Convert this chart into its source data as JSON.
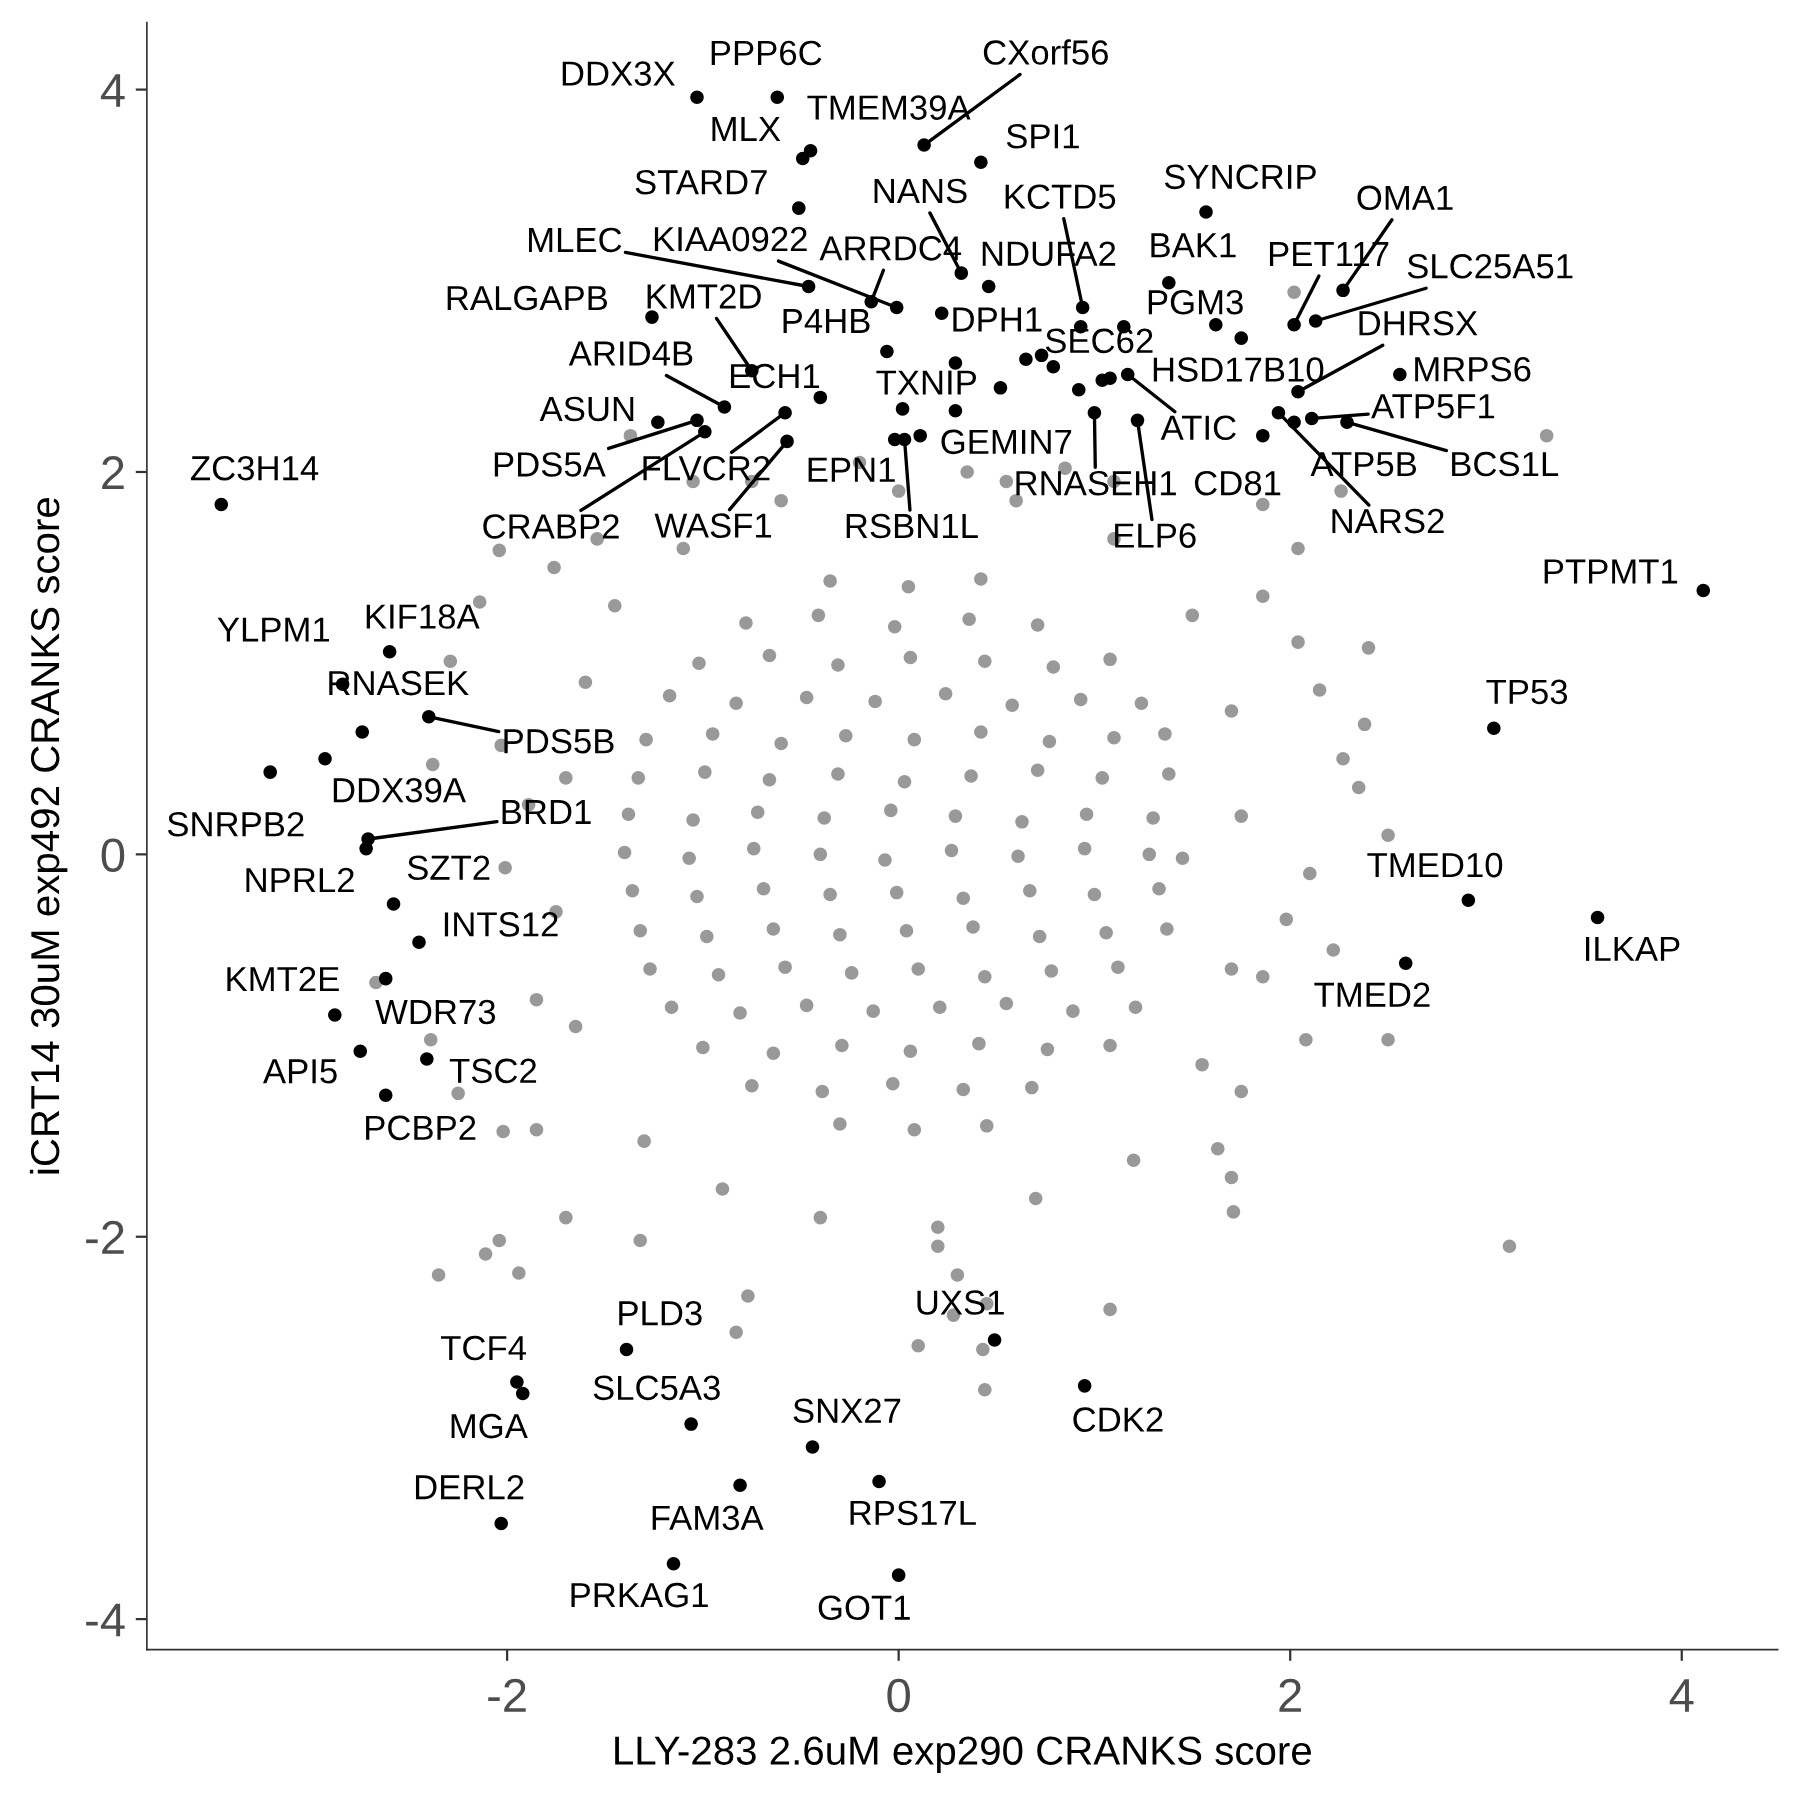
{
  "chart_data": {
    "type": "scatter",
    "xlabel": "LLY-283 2.6uM exp290 CRANKS score",
    "ylabel": "iCRT14 30uM exp492 CRANKS score",
    "xlim": [
      -3.84,
      4.49
    ],
    "ylim": [
      -4.16,
      4.35
    ],
    "xticks": [
      -2,
      0,
      2,
      4
    ],
    "yticks": [
      -4,
      -2,
      0,
      2,
      4
    ],
    "marker": "circle",
    "series": [
      {
        "color": "#999999",
        "x": [
          -1.37,
          -2.04,
          -1.76,
          -1.54,
          -2.14,
          2.02,
          3.31,
          2.26,
          1.86,
          2.04,
          2.4,
          2.38,
          2.5,
          2.35,
          2.22,
          2.5,
          2.08,
          3.12,
          1.7,
          1.71,
          1.08,
          0.44,
          0.43,
          0.1,
          0.28,
          -0.83,
          -0.77,
          -1.32,
          -1.7,
          -1.94,
          -2.35,
          -2.04,
          -2.11,
          -2.02,
          -1.85,
          -2.03,
          -2.38,
          -2.29,
          -2.67,
          -2.39,
          -1.85,
          -2.01,
          -1.89,
          1.86,
          2.04,
          2.15,
          2.27,
          2.1,
          1.98,
          1.86,
          1.75,
          1.63,
          -1.6,
          -1.7,
          -1.75,
          -1.65,
          -1.3,
          -0.9,
          -0.4,
          0.2,
          0.7,
          1.2,
          1.55,
          1.7,
          1.75,
          1.7,
          1.5,
          1.1,
          0.6,
          0.0,
          -0.6,
          -1.1,
          -1.45,
          0.35,
          0.55,
          0.85,
          1.1,
          -0.2,
          -0.75,
          -1.05,
          0.3,
          0.45,
          0.2,
          -2.25,
          -0.35,
          0.05,
          0.42,
          -0.78,
          -0.41,
          -0.02,
          0.36,
          0.71,
          -1.02,
          -0.66,
          -0.31,
          0.06,
          0.44,
          0.79,
          1.08,
          -1.17,
          -0.83,
          -0.47,
          -0.12,
          0.24,
          0.58,
          0.93,
          1.24,
          -1.29,
          -0.95,
          -0.6,
          -0.27,
          0.08,
          0.42,
          0.77,
          1.1,
          1.36,
          -1.33,
          -0.99,
          -0.66,
          -0.31,
          0.03,
          0.37,
          0.71,
          1.04,
          1.38,
          -1.38,
          -1.05,
          -0.72,
          -0.38,
          -0.04,
          0.29,
          0.63,
          0.96,
          1.3,
          -1.4,
          -1.07,
          -0.74,
          -0.4,
          -0.07,
          0.27,
          0.61,
          0.95,
          1.28,
          1.45,
          -1.36,
          -1.03,
          -0.69,
          -0.35,
          -0.01,
          0.33,
          0.67,
          1.0,
          1.33,
          -1.32,
          -0.98,
          -0.64,
          -0.3,
          0.04,
          0.38,
          0.72,
          1.06,
          1.37,
          -1.27,
          -0.92,
          -0.58,
          -0.24,
          0.1,
          0.44,
          0.78,
          1.12,
          -1.16,
          -0.81,
          -0.47,
          -0.13,
          0.21,
          0.55,
          0.89,
          1.21,
          -1.0,
          -0.64,
          -0.29,
          0.06,
          0.41,
          0.76,
          1.08,
          -0.75,
          -0.39,
          -0.03,
          0.33,
          0.68,
          -0.3,
          0.08,
          0.45
        ],
        "values": [
          2.19,
          1.59,
          1.5,
          1.65,
          1.32,
          2.94,
          2.19,
          1.9,
          1.83,
          1.6,
          1.08,
          0.68,
          0.1,
          0.35,
          -0.5,
          -0.97,
          -0.97,
          -2.05,
          -1.69,
          -1.87,
          -2.38,
          -2.8,
          -2.59,
          -2.57,
          -2.41,
          -2.5,
          -2.31,
          -2.02,
          -1.9,
          -2.19,
          -2.2,
          -2.02,
          -2.09,
          -1.45,
          -1.44,
          0.57,
          0.47,
          1.01,
          -0.67,
          -0.97,
          -0.76,
          -0.07,
          0.26,
          1.35,
          1.11,
          0.86,
          0.5,
          -0.1,
          -0.34,
          -0.64,
          -1.24,
          -1.54,
          0.9,
          0.4,
          -0.3,
          -0.9,
          -1.5,
          -1.75,
          -1.9,
          -1.95,
          -1.8,
          -1.6,
          -1.1,
          -0.6,
          0.2,
          0.75,
          1.25,
          1.65,
          1.85,
          1.9,
          1.85,
          1.6,
          1.3,
          2.0,
          1.95,
          2.02,
          1.95,
          2.05,
          1.95,
          1.95,
          -2.2,
          -2.35,
          -2.05,
          -1.25,
          1.43,
          1.4,
          1.44,
          1.21,
          1.25,
          1.19,
          1.23,
          1.2,
          1.0,
          1.04,
          0.99,
          1.03,
          1.01,
          0.98,
          1.02,
          0.83,
          0.79,
          0.82,
          0.8,
          0.84,
          0.78,
          0.81,
          0.79,
          0.6,
          0.63,
          0.58,
          0.62,
          0.6,
          0.64,
          0.59,
          0.61,
          0.63,
          0.4,
          0.43,
          0.39,
          0.42,
          0.38,
          0.41,
          0.44,
          0.4,
          0.42,
          0.21,
          0.18,
          0.22,
          0.19,
          0.23,
          0.2,
          0.17,
          0.21,
          0.19,
          0.01,
          -0.02,
          0.03,
          0.0,
          -0.03,
          0.02,
          -0.01,
          0.03,
          0.0,
          -0.02,
          -0.19,
          -0.22,
          -0.18,
          -0.21,
          -0.2,
          -0.23,
          -0.19,
          -0.21,
          -0.18,
          -0.4,
          -0.43,
          -0.39,
          -0.42,
          -0.4,
          -0.38,
          -0.43,
          -0.41,
          -0.39,
          -0.6,
          -0.63,
          -0.59,
          -0.62,
          -0.6,
          -0.64,
          -0.61,
          -0.59,
          -0.8,
          -0.83,
          -0.79,
          -0.82,
          -0.8,
          -0.78,
          -0.82,
          -0.8,
          -1.01,
          -1.04,
          -1.0,
          -1.03,
          -0.99,
          -1.02,
          -1.0,
          -1.21,
          -1.24,
          -1.2,
          -1.23,
          -1.22,
          -1.41,
          -1.44,
          -1.42
        ]
      },
      {
        "color": "#000000",
        "x": [
          -1.03,
          -0.62,
          0.13,
          -0.45,
          -0.49,
          0.42,
          -0.51,
          1.57,
          2.27,
          0.32,
          0.94,
          -0.46,
          -0.01,
          -0.14,
          0.46,
          1.38,
          2.02,
          2.13,
          -1.26,
          -0.75,
          -0.06,
          0.22,
          1.62,
          2.04,
          0.79,
          2.56,
          -0.89,
          -0.4,
          1.75,
          0.29,
          -1.23,
          1.17,
          2.11,
          0.11,
          -1.03,
          -0.58,
          -0.02,
          1.0,
          1.86,
          2.02,
          2.29,
          -0.99,
          -0.57,
          0.03,
          1.22,
          1.94,
          -3.46,
          4.11,
          -2.6,
          -2.84,
          -2.74,
          -2.4,
          -2.93,
          -3.21,
          3.04,
          -2.71,
          -2.72,
          -2.58,
          2.91,
          3.57,
          -2.45,
          2.59,
          -2.62,
          -2.88,
          -2.75,
          -2.41,
          -2.62,
          0.49,
          -1.39,
          -1.95,
          0.95,
          -1.92,
          -1.06,
          -0.44,
          -0.1,
          -0.81,
          -2.03,
          -1.15,
          0.0,
          0.29,
          0.52,
          0.02,
          0.65,
          0.73,
          0.92,
          1.04,
          1.08,
          0.93,
          1.15
        ],
        "values": [
          3.96,
          3.96,
          3.71,
          3.68,
          3.64,
          3.62,
          3.38,
          3.36,
          2.95,
          3.04,
          2.86,
          2.97,
          2.86,
          2.89,
          2.97,
          2.99,
          2.77,
          2.79,
          2.81,
          2.53,
          2.63,
          2.83,
          2.77,
          2.42,
          2.55,
          2.51,
          2.34,
          2.39,
          2.7,
          2.32,
          2.26,
          2.51,
          2.28,
          2.19,
          2.27,
          2.31,
          2.17,
          2.31,
          2.19,
          2.26,
          2.26,
          2.21,
          2.16,
          2.17,
          2.27,
          2.31,
          1.83,
          1.38,
          1.06,
          0.89,
          0.64,
          0.72,
          0.5,
          0.43,
          0.66,
          0.08,
          0.03,
          -0.26,
          -0.24,
          -0.33,
          -0.46,
          -0.57,
          -0.65,
          -0.84,
          -1.03,
          -1.07,
          -1.26,
          -2.54,
          -2.59,
          -2.76,
          -2.78,
          -2.82,
          -2.98,
          -3.1,
          -3.28,
          -3.3,
          -3.5,
          -3.71,
          -3.77,
          2.57,
          2.44,
          2.33,
          2.59,
          2.61,
          2.43,
          2.48,
          2.49,
          2.76,
          2.76
        ]
      }
    ],
    "annotations": [
      {
        "text": "DDX3X",
        "x": -1.03,
        "y": 3.96
      },
      {
        "text": "PPP6C",
        "x": -0.62,
        "y": 3.96
      },
      {
        "text": "CXorf56",
        "x": 0.13,
        "y": 3.71
      },
      {
        "text": "TMEM39A",
        "x": -0.45,
        "y": 3.68
      },
      {
        "text": "MLX",
        "x": -0.49,
        "y": 3.64
      },
      {
        "text": "SPI1",
        "x": 0.42,
        "y": 3.62
      },
      {
        "text": "STARD7",
        "x": -0.51,
        "y": 3.38
      },
      {
        "text": "SYNCRIP",
        "x": 1.57,
        "y": 3.36
      },
      {
        "text": "OMA1",
        "x": 2.27,
        "y": 2.95
      },
      {
        "text": "NANS",
        "x": 0.32,
        "y": 3.04
      },
      {
        "text": "KCTD5",
        "x": 0.94,
        "y": 2.86
      },
      {
        "text": "MLEC",
        "x": -0.46,
        "y": 2.97
      },
      {
        "text": "KIAA0922",
        "x": -0.01,
        "y": 2.86
      },
      {
        "text": "ARRDC4",
        "x": -0.14,
        "y": 2.89
      },
      {
        "text": "NDUFA2",
        "x": 0.46,
        "y": 2.97
      },
      {
        "text": "BAK1",
        "x": 1.38,
        "y": 2.99
      },
      {
        "text": "PET117",
        "x": 2.02,
        "y": 2.77
      },
      {
        "text": "SLC25A51",
        "x": 2.13,
        "y": 2.79
      },
      {
        "text": "RALGAPB",
        "x": -1.26,
        "y": 2.81
      },
      {
        "text": "KMT2D",
        "x": -0.75,
        "y": 2.53
      },
      {
        "text": "P4HB",
        "x": -0.06,
        "y": 2.63
      },
      {
        "text": "DPH1",
        "x": 0.22,
        "y": 2.83
      },
      {
        "text": "PGM3",
        "x": 1.62,
        "y": 2.77
      },
      {
        "text": "DHRSX",
        "x": 2.04,
        "y": 2.42
      },
      {
        "text": "SEC62",
        "x": 0.79,
        "y": 2.55
      },
      {
        "text": "MRPS6",
        "x": 2.56,
        "y": 2.51
      },
      {
        "text": "ARID4B",
        "x": -0.89,
        "y": 2.34
      },
      {
        "text": "ECH1",
        "x": -0.4,
        "y": 2.39
      },
      {
        "text": "HSD17B10",
        "x": 1.75,
        "y": 2.7
      },
      {
        "text": "TXNIP",
        "x": 0.29,
        "y": 2.32
      },
      {
        "text": "ASUN",
        "x": -1.23,
        "y": 2.26
      },
      {
        "text": "ATIC",
        "x": 1.17,
        "y": 2.51
      },
      {
        "text": "ATP5F1",
        "x": 2.11,
        "y": 2.28
      },
      {
        "text": "GEMIN7",
        "x": 0.11,
        "y": 2.19
      },
      {
        "text": "PDS5A",
        "x": -1.03,
        "y": 2.27
      },
      {
        "text": "FLVCR2",
        "x": -0.58,
        "y": 2.31
      },
      {
        "text": "EPN1",
        "x": -0.02,
        "y": 2.17
      },
      {
        "text": "RNASEH1",
        "x": 1.0,
        "y": 2.31
      },
      {
        "text": "CD81",
        "x": 1.86,
        "y": 2.19
      },
      {
        "text": "ATP5B",
        "x": 2.02,
        "y": 2.26
      },
      {
        "text": "BCS1L",
        "x": 2.29,
        "y": 2.26
      },
      {
        "text": "CRABP2",
        "x": -0.99,
        "y": 2.21
      },
      {
        "text": "WASF1",
        "x": -0.57,
        "y": 2.16
      },
      {
        "text": "RSBN1L",
        "x": 0.03,
        "y": 2.17
      },
      {
        "text": "ELP6",
        "x": 1.22,
        "y": 2.27
      },
      {
        "text": "NARS2",
        "x": 1.94,
        "y": 2.31
      },
      {
        "text": "ZC3H14",
        "x": -3.46,
        "y": 1.83
      },
      {
        "text": "PTPMT1",
        "x": 4.11,
        "y": 1.38
      },
      {
        "text": "KIF18A",
        "x": -2.6,
        "y": 1.06
      },
      {
        "text": "YLPM1",
        "x": -2.84,
        "y": 0.89
      },
      {
        "text": "RNASEK",
        "x": -2.74,
        "y": 0.64
      },
      {
        "text": "PDS5B",
        "x": -2.4,
        "y": 0.72
      },
      {
        "text": "DDX39A",
        "x": -2.93,
        "y": 0.5
      },
      {
        "text": "SNRPB2",
        "x": -3.21,
        "y": 0.43
      },
      {
        "text": "TP53",
        "x": 3.04,
        "y": 0.66
      },
      {
        "text": "BRD1",
        "x": -2.71,
        "y": 0.08
      },
      {
        "text": "NPRL2",
        "x": -2.72,
        "y": 0.03
      },
      {
        "text": "SZT2",
        "x": -2.58,
        "y": -0.26
      },
      {
        "text": "TMED10",
        "x": 2.91,
        "y": -0.24
      },
      {
        "text": "ILKAP",
        "x": 3.57,
        "y": -0.33
      },
      {
        "text": "INTS12",
        "x": -2.45,
        "y": -0.46
      },
      {
        "text": "TMED2",
        "x": 2.59,
        "y": -0.57
      },
      {
        "text": "KMT2E",
        "x": -2.62,
        "y": -0.65
      },
      {
        "text": "WDR73",
        "x": -2.88,
        "y": -0.84
      },
      {
        "text": "API5",
        "x": -2.75,
        "y": -1.03
      },
      {
        "text": "TSC2",
        "x": -2.41,
        "y": -1.07
      },
      {
        "text": "PCBP2",
        "x": -2.62,
        "y": -1.26
      },
      {
        "text": "UXS1",
        "x": 0.49,
        "y": -2.54
      },
      {
        "text": "PLD3",
        "x": -1.39,
        "y": -2.59
      },
      {
        "text": "TCF4",
        "x": -1.95,
        "y": -2.76
      },
      {
        "text": "CDK2",
        "x": 0.95,
        "y": -2.78
      },
      {
        "text": "MGA",
        "x": -1.92,
        "y": -2.82
      },
      {
        "text": "SLC5A3",
        "x": -1.06,
        "y": -2.98
      },
      {
        "text": "SNX27",
        "x": -0.44,
        "y": -3.1
      },
      {
        "text": "RPS17L",
        "x": -0.1,
        "y": -3.28
      },
      {
        "text": "FAM3A",
        "x": -0.81,
        "y": -3.3
      },
      {
        "text": "DERL2",
        "x": -2.03,
        "y": -3.5
      },
      {
        "text": "PRKAG1",
        "x": -1.15,
        "y": -3.71
      },
      {
        "text": "GOT1",
        "x": 0.0,
        "y": -3.77
      }
    ]
  }
}
